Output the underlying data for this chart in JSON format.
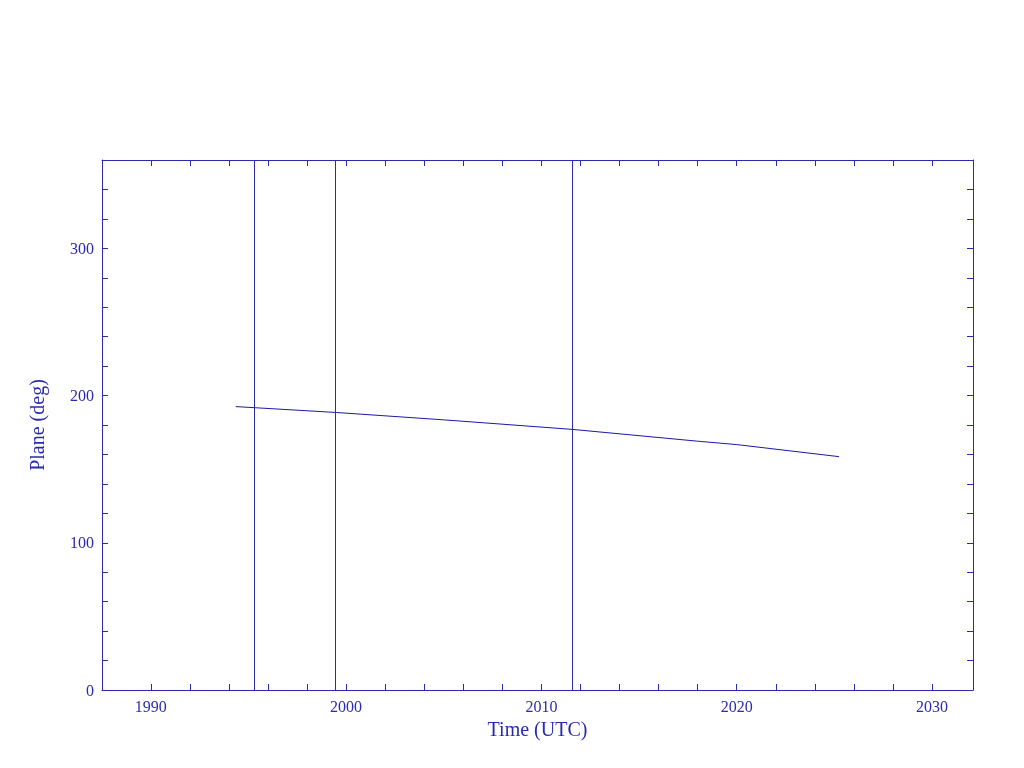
{
  "chart_data": {
    "type": "line",
    "xlabel": "Time (UTC)",
    "ylabel": "Plane (deg)",
    "x": [
      1994.35,
      1999.5,
      2005,
      2011.6,
      2018,
      2020,
      2025.24
    ],
    "series": [
      {
        "color": "#1a1aa6",
        "values": [
          192.5,
          188.5,
          183.5,
          177,
          169,
          166.7,
          158.5
        ]
      }
    ],
    "xlim": [
      1987.5,
      2032.1
    ],
    "xticks": [
      1990,
      {
        "value": 1992,
        "label": null
      },
      {
        "value": 1994,
        "label": null
      },
      {
        "value": 1996,
        "label": null
      },
      {
        "value": 1998,
        "label": null
      },
      2000,
      {
        "value": 2002,
        "label": null
      },
      {
        "value": 2004,
        "label": null
      },
      {
        "value": 2006,
        "label": null
      },
      {
        "value": 2008,
        "label": null
      },
      2010,
      {
        "value": 2012,
        "label": null
      },
      {
        "value": 2014,
        "label": null
      },
      {
        "value": 2016,
        "label": null
      },
      {
        "value": 2018,
        "label": null
      },
      2020,
      {
        "value": 2022,
        "label": null
      },
      {
        "value": 2024,
        "label": null
      },
      {
        "value": 2026,
        "label": null
      },
      {
        "value": 2028,
        "label": null
      },
      2030
    ],
    "ylim": [
      0,
      360
    ],
    "yticks": [
      0,
      {
        "value": 20,
        "label": null
      },
      {
        "value": 40,
        "label": null
      },
      {
        "value": 60,
        "label": null
      },
      {
        "value": 80,
        "label": null
      },
      100,
      {
        "value": 120,
        "label": null
      },
      {
        "value": 140,
        "label": null
      },
      {
        "value": 160,
        "label": null
      },
      {
        "value": 180,
        "label": null
      },
      200,
      {
        "value": 220,
        "label": null
      },
      {
        "value": 240,
        "label": null
      },
      {
        "value": 260,
        "label": null
      },
      {
        "value": 280,
        "label": null
      },
      300,
      {
        "value": 320,
        "label": null
      },
      {
        "value": 340,
        "label": null
      }
    ],
    "ref_lines": [
      {
        "axis": "x",
        "value": 1995.32
      },
      {
        "axis": "x",
        "value": 1999.46
      },
      {
        "axis": "x",
        "value": 2011.59
      }
    ],
    "marker": "none",
    "line_style": "solid"
  }
}
